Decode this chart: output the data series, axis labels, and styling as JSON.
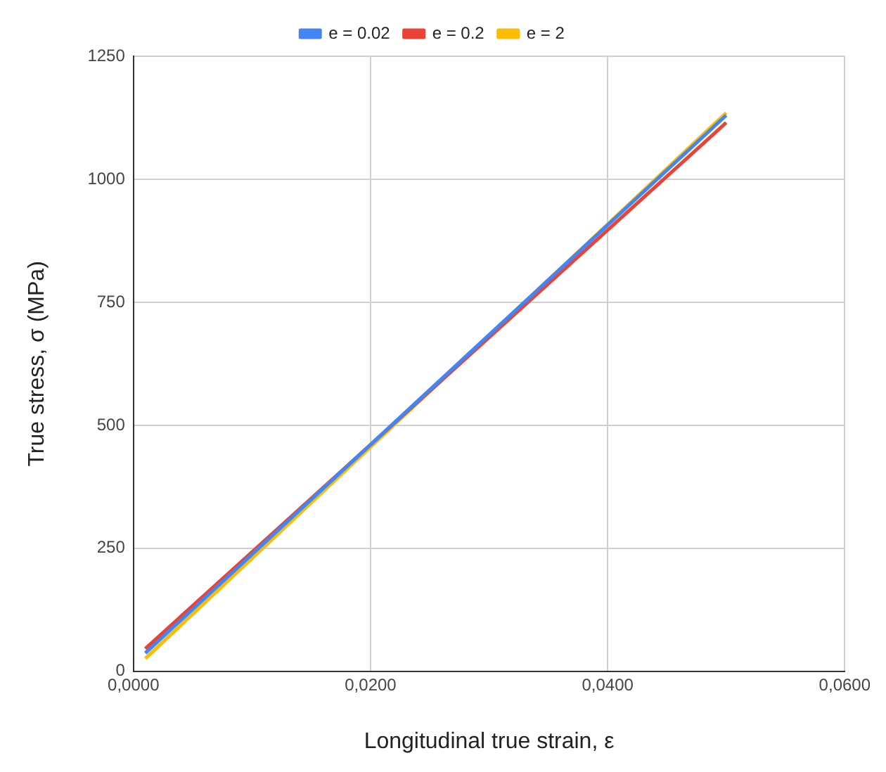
{
  "chart_data": {
    "type": "line",
    "xlabel": "Longitudinal true strain, ε",
    "ylabel": "True stress, σ (MPa)",
    "xlim": [
      0,
      0.06
    ],
    "xticks": [
      {
        "value": 0,
        "label": "0,0000"
      },
      {
        "value": 0.02,
        "label": "0,0200"
      },
      {
        "value": 0.04,
        "label": "0,0400"
      },
      {
        "value": 0.06,
        "label": "0,0600"
      }
    ],
    "ylim": [
      0,
      1250
    ],
    "yticks": [
      0,
      250,
      500,
      750,
      1000,
      1250
    ],
    "grid": true,
    "legend": "top",
    "marker": "none",
    "line_style": "solid",
    "x": [
      0.001,
      0.05
    ],
    "series": [
      {
        "name": "e = 0.02",
        "color": "#4285f4",
        "values": [
          37,
          1130
        ]
      },
      {
        "name": "e = 0.2",
        "color": "#ea4335",
        "values": [
          46,
          1115
        ]
      },
      {
        "name": "e = 2",
        "color": "#fbbc04",
        "values": [
          26,
          1135
        ]
      }
    ]
  }
}
